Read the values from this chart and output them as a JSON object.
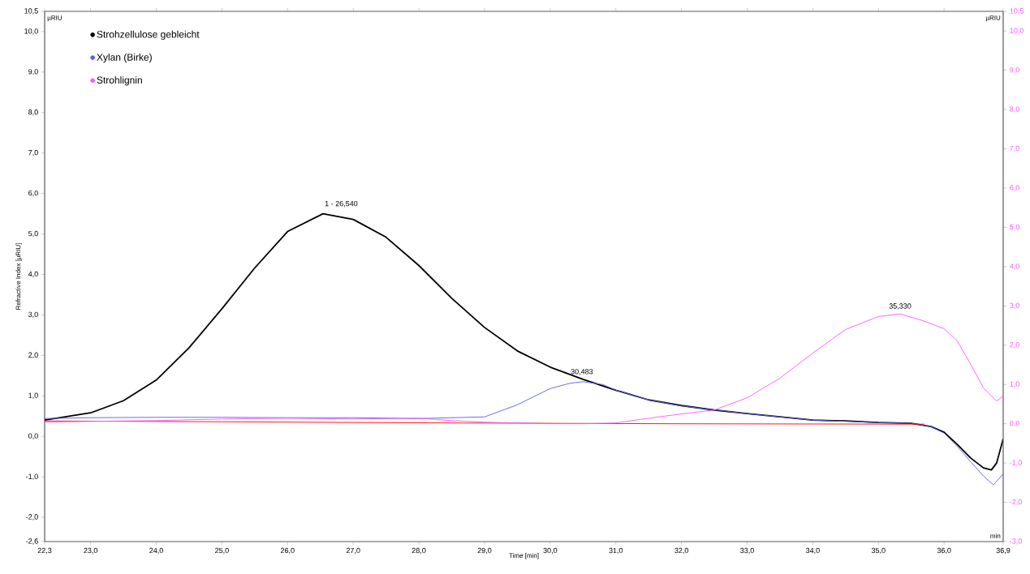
{
  "chart_data": {
    "type": "line",
    "xlabel": "Time [min]",
    "ylabel": "Refractive Index [µRIU]",
    "xlim": [
      22.3,
      36.9
    ],
    "xticks": [
      {
        "value": 22.3,
        "label": "22,3"
      },
      {
        "value": 23.0,
        "label": "23,0"
      },
      {
        "value": 24.0,
        "label": "24,0"
      },
      {
        "value": 25.0,
        "label": "25,0"
      },
      {
        "value": 26.0,
        "label": "26,0"
      },
      {
        "value": 27.0,
        "label": "27,0"
      },
      {
        "value": 28.0,
        "label": "28,0"
      },
      {
        "value": 29.0,
        "label": "29,0"
      },
      {
        "value": 30.0,
        "label": "30,0"
      },
      {
        "value": 31.0,
        "label": "31,0"
      },
      {
        "value": 32.0,
        "label": "32,0"
      },
      {
        "value": 33.0,
        "label": "33,0"
      },
      {
        "value": 34.0,
        "label": "34,0"
      },
      {
        "value": 35.0,
        "label": "35,0"
      },
      {
        "value": 36.0,
        "label": "36,0"
      },
      {
        "value": 36.9,
        "label": "36,9"
      }
    ],
    "ylim": [
      -2.6,
      10.5
    ],
    "yticks": [
      {
        "value": -2.6,
        "label": "-2,6"
      },
      {
        "value": -2.0,
        "label": "-2,0"
      },
      {
        "value": -1.0,
        "label": "-1,0"
      },
      {
        "value": 0.0,
        "label": "0,0"
      },
      {
        "value": 1.0,
        "label": "1,0"
      },
      {
        "value": 2.0,
        "label": "2,0"
      },
      {
        "value": 3.0,
        "label": "3,0"
      },
      {
        "value": 4.0,
        "label": "4,0"
      },
      {
        "value": 5.0,
        "label": "5,0"
      },
      {
        "value": 6.0,
        "label": "6,0"
      },
      {
        "value": 7.0,
        "label": "7,0"
      },
      {
        "value": 8.0,
        "label": "8,0"
      },
      {
        "value": 9.0,
        "label": "9,0"
      },
      {
        "value": 10.0,
        "label": "10,0"
      },
      {
        "value": 10.5,
        "label": "10,5"
      }
    ],
    "y2lim": [
      -3.0,
      10.5
    ],
    "y2ticks": [
      {
        "value": -3.0,
        "label": "-3,0"
      },
      {
        "value": -2.0,
        "label": "-2,0"
      },
      {
        "value": -1.0,
        "label": "-1,0"
      },
      {
        "value": 0.0,
        "label": "0,0"
      },
      {
        "value": 1.0,
        "label": "1,0"
      },
      {
        "value": 2.0,
        "label": "2,0"
      },
      {
        "value": 3.0,
        "label": "3,0"
      },
      {
        "value": 4.0,
        "label": "4,0"
      },
      {
        "value": 5.0,
        "label": "5,0"
      },
      {
        "value": 6.0,
        "label": "6,0"
      },
      {
        "value": 7.0,
        "label": "7,0"
      },
      {
        "value": 8.0,
        "label": "8,0"
      },
      {
        "value": 9.0,
        "label": "9,0"
      },
      {
        "value": 10.0,
        "label": "10,0"
      },
      {
        "value": 10.5,
        "label": "10,5"
      }
    ],
    "legend": "top left",
    "series": [
      {
        "name": "Strohzellulose gebleicht",
        "color": "#000000",
        "x": [
          22.3,
          23.0,
          23.5,
          24.0,
          24.5,
          25.0,
          25.5,
          26.0,
          26.54,
          27.0,
          27.5,
          28.0,
          28.5,
          29.0,
          29.5,
          30.0,
          30.5,
          31.0,
          31.5,
          32.0,
          32.5,
          33.0,
          33.5,
          34.0,
          34.5,
          35.0,
          35.5,
          35.8,
          36.0,
          36.2,
          36.4,
          36.6,
          36.72,
          36.8,
          36.9
        ],
        "values": [
          0.4,
          0.58,
          0.88,
          1.39,
          2.19,
          3.15,
          4.16,
          5.06,
          5.5,
          5.36,
          4.92,
          4.22,
          3.41,
          2.69,
          2.11,
          1.71,
          1.41,
          1.14,
          0.9,
          0.76,
          0.65,
          0.56,
          0.48,
          0.4,
          0.38,
          0.34,
          0.32,
          0.24,
          0.1,
          -0.2,
          -0.53,
          -0.78,
          -0.83,
          -0.66,
          -0.06
        ]
      },
      {
        "name": "Xylan (Birke)",
        "color": "#5a5af0",
        "x": [
          22.3,
          23.0,
          24.0,
          25.0,
          26.0,
          27.0,
          28.0,
          28.5,
          29.0,
          29.5,
          30.0,
          30.3,
          30.5,
          30.8,
          31.0,
          31.5,
          32.0,
          33.0,
          34.0,
          35.0,
          35.5,
          35.8,
          36.0,
          36.2,
          36.4,
          36.6,
          36.75,
          36.9
        ],
        "values": [
          0.44,
          0.46,
          0.47,
          0.47,
          0.46,
          0.46,
          0.44,
          0.46,
          0.48,
          0.78,
          1.18,
          1.31,
          1.35,
          1.28,
          1.14,
          0.9,
          0.75,
          0.56,
          0.4,
          0.34,
          0.32,
          0.24,
          0.08,
          -0.25,
          -0.62,
          -0.98,
          -1.2,
          -0.93
        ]
      },
      {
        "name": "Strohlignin",
        "color": "#ff55ff",
        "axis": "y2",
        "x": [
          22.3,
          23.0,
          24.0,
          25.0,
          26.0,
          27.0,
          28.0,
          28.5,
          29.0,
          29.5,
          30.0,
          30.5,
          31.0,
          31.5,
          32.0,
          32.5,
          33.0,
          33.5,
          34.0,
          34.5,
          35.0,
          35.33,
          35.7,
          36.0,
          36.2,
          36.4,
          36.6,
          36.8,
          36.9
        ],
        "values": [
          0.04,
          0.06,
          0.08,
          0.12,
          0.14,
          0.12,
          0.14,
          0.08,
          0.04,
          0.02,
          0.0,
          0.0,
          0.02,
          0.14,
          0.25,
          0.35,
          0.66,
          1.16,
          1.8,
          2.4,
          2.73,
          2.8,
          2.61,
          2.42,
          2.11,
          1.53,
          0.91,
          0.58,
          0.7
        ]
      },
      {
        "color": "#ff0000",
        "x": [
          22.3,
          25.0,
          28.5,
          32.0,
          35.7
        ],
        "values": [
          0.38,
          0.36,
          0.33,
          0.31,
          0.3
        ]
      }
    ],
    "annotations": [
      {
        "text": "1 - 26,540",
        "x": 26.54,
        "y": 5.5
      },
      {
        "text": "30,483",
        "x": 30.483,
        "y": 1.35
      },
      {
        "text": "35,330",
        "x": 35.33,
        "y": 2.97
      },
      "µRIU",
      "µRIU",
      "min"
    ]
  }
}
